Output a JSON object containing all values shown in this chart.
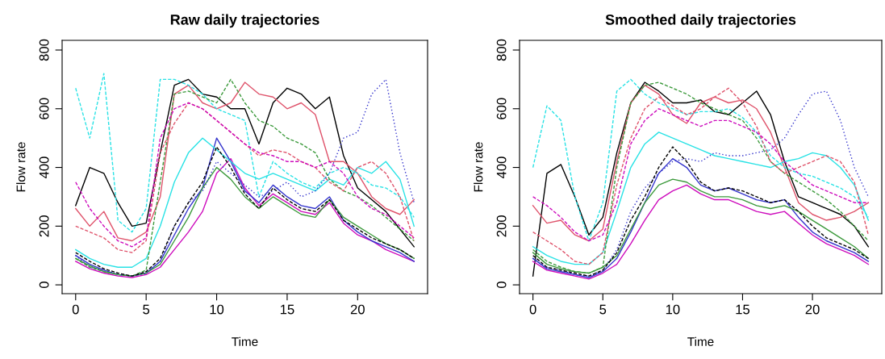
{
  "chart_data": [
    {
      "type": "line",
      "title": "Raw daily trajectories",
      "xlabel": "Time",
      "ylabel": "Flow rate",
      "xlim": [
        -0.96,
        24.96
      ],
      "ylim": [
        -30,
        833
      ],
      "xticks": [
        0,
        5,
        10,
        15,
        20
      ],
      "yticks": [
        0,
        200,
        400,
        600,
        800
      ],
      "grid": false,
      "x": [
        0,
        1,
        2,
        3,
        4,
        5,
        6,
        7,
        8,
        9,
        10,
        11,
        12,
        13,
        14,
        15,
        16,
        17,
        18,
        19,
        20,
        21,
        22,
        23,
        24
      ],
      "series": [
        {
          "color": "#28e2e5",
          "line_style": "dashed",
          "values": [
            670,
            500,
            720,
            220,
            180,
            260,
            700,
            700,
            680,
            650,
            600,
            580,
            560,
            300,
            420,
            380,
            350,
            330,
            380,
            400,
            380,
            340,
            330,
            300,
            230
          ]
        },
        {
          "color": "#000000",
          "line_style": "solid",
          "values": [
            270,
            400,
            380,
            280,
            200,
            210,
            450,
            680,
            700,
            650,
            640,
            600,
            600,
            480,
            620,
            670,
            650,
            600,
            640,
            440,
            330,
            290,
            250,
            190,
            130
          ]
        },
        {
          "color": "#df536b",
          "line_style": "solid",
          "values": [
            260,
            200,
            250,
            160,
            150,
            180,
            300,
            650,
            680,
            620,
            600,
            620,
            690,
            650,
            640,
            600,
            620,
            580,
            420,
            420,
            380,
            300,
            260,
            240,
            290
          ]
        },
        {
          "color": "#3333cc",
          "line_style": "dotted",
          "values": [
            100,
            60,
            50,
            35,
            30,
            40,
            80,
            200,
            280,
            320,
            420,
            380,
            340,
            300,
            320,
            350,
            300,
            320,
            380,
            500,
            520,
            650,
            700,
            450,
            280
          ]
        },
        {
          "color": "#3c9a3c",
          "line_style": "dashed",
          "values": [
            90,
            60,
            45,
            35,
            30,
            50,
            350,
            650,
            660,
            640,
            620,
            700,
            620,
            560,
            540,
            500,
            480,
            450,
            360,
            320,
            300,
            270,
            230,
            190,
            150
          ]
        },
        {
          "color": "#cd0bbc",
          "line_style": "solid",
          "values": [
            80,
            55,
            40,
            30,
            25,
            35,
            60,
            120,
            180,
            250,
            380,
            430,
            330,
            270,
            310,
            280,
            250,
            240,
            280,
            210,
            170,
            150,
            120,
            100,
            80
          ]
        },
        {
          "color": "#3333cc",
          "line_style": "solid",
          "values": [
            100,
            70,
            50,
            35,
            30,
            40,
            80,
            170,
            260,
            330,
            500,
            420,
            320,
            280,
            340,
            300,
            270,
            260,
            300,
            220,
            180,
            150,
            130,
            110,
            80
          ]
        },
        {
          "color": "#000000",
          "line_style": "dashed",
          "values": [
            110,
            80,
            55,
            40,
            30,
            45,
            90,
            200,
            280,
            350,
            470,
            400,
            310,
            260,
            330,
            290,
            260,
            250,
            290,
            220,
            190,
            160,
            140,
            120,
            90
          ]
        },
        {
          "color": "#df536b",
          "line_style": "dashed",
          "values": [
            200,
            180,
            160,
            120,
            110,
            150,
            450,
            550,
            620,
            600,
            560,
            520,
            480,
            440,
            460,
            450,
            420,
            400,
            350,
            320,
            400,
            420,
            380,
            300,
            150
          ]
        },
        {
          "color": "#28e2e5",
          "line_style": "solid",
          "values": [
            120,
            90,
            70,
            60,
            60,
            90,
            200,
            350,
            450,
            500,
            460,
            420,
            380,
            360,
            380,
            360,
            340,
            320,
            360,
            340,
            400,
            380,
            420,
            360,
            200
          ]
        },
        {
          "color": "#3c9a3c",
          "line_style": "solid",
          "values": [
            90,
            65,
            45,
            35,
            30,
            40,
            70,
            150,
            230,
            330,
            400,
            360,
            300,
            260,
            300,
            270,
            240,
            230,
            290,
            230,
            200,
            170,
            140,
            120,
            90
          ]
        },
        {
          "color": "#cd0bbc",
          "line_style": "dashed",
          "values": [
            350,
            260,
            200,
            150,
            130,
            160,
            500,
            600,
            620,
            600,
            560,
            520,
            480,
            450,
            440,
            420,
            420,
            400,
            420,
            380,
            300,
            260,
            240,
            200,
            160
          ]
        }
      ]
    },
    {
      "type": "line",
      "title": "Smoothed daily trajectories",
      "xlabel": "Time",
      "ylabel": "Flow rate",
      "xlim": [
        -0.96,
        24.96
      ],
      "ylim": [
        -30,
        833
      ],
      "xticks": [
        0,
        5,
        10,
        15,
        20
      ],
      "yticks": [
        0,
        200,
        400,
        600,
        800
      ],
      "grid": false,
      "x": [
        0,
        1,
        2,
        3,
        4,
        5,
        6,
        7,
        8,
        9,
        10,
        11,
        12,
        13,
        14,
        15,
        16,
        17,
        18,
        19,
        20,
        21,
        22,
        23,
        24
      ],
      "series": [
        {
          "color": "#28e2e5",
          "line_style": "dashed",
          "values": [
            400,
            610,
            560,
            300,
            150,
            280,
            660,
            700,
            650,
            620,
            600,
            580,
            590,
            590,
            600,
            570,
            520,
            440,
            400,
            380,
            370,
            350,
            330,
            300,
            230
          ]
        },
        {
          "color": "#000000",
          "line_style": "solid",
          "values": [
            30,
            380,
            410,
            300,
            170,
            230,
            450,
            620,
            690,
            660,
            620,
            620,
            630,
            590,
            580,
            620,
            660,
            580,
            420,
            300,
            280,
            260,
            240,
            200,
            130
          ]
        },
        {
          "color": "#df536b",
          "line_style": "solid",
          "values": [
            270,
            210,
            220,
            170,
            150,
            190,
            420,
            620,
            680,
            650,
            580,
            550,
            620,
            640,
            620,
            630,
            600,
            520,
            400,
            280,
            240,
            220,
            230,
            250,
            280
          ]
        },
        {
          "color": "#3333cc",
          "line_style": "dotted",
          "values": [
            90,
            60,
            50,
            35,
            30,
            50,
            120,
            250,
            330,
            380,
            420,
            430,
            420,
            450,
            440,
            440,
            450,
            460,
            500,
            580,
            650,
            660,
            560,
            400,
            300
          ]
        },
        {
          "color": "#3c9a3c",
          "line_style": "dashed",
          "values": [
            120,
            80,
            60,
            45,
            40,
            60,
            400,
            620,
            680,
            690,
            670,
            650,
            620,
            600,
            580,
            560,
            500,
            420,
            380,
            350,
            320,
            290,
            250,
            200,
            150
          ]
        },
        {
          "color": "#cd0bbc",
          "line_style": "solid",
          "values": [
            80,
            50,
            40,
            30,
            20,
            40,
            70,
            140,
            220,
            290,
            320,
            340,
            310,
            290,
            290,
            270,
            250,
            240,
            250,
            210,
            170,
            140,
            120,
            100,
            70
          ]
        },
        {
          "color": "#3333cc",
          "line_style": "solid",
          "values": [
            90,
            55,
            45,
            35,
            25,
            45,
            90,
            180,
            280,
            380,
            430,
            400,
            340,
            320,
            330,
            310,
            290,
            280,
            290,
            230,
            180,
            150,
            130,
            110,
            80
          ]
        },
        {
          "color": "#000000",
          "line_style": "dashed",
          "values": [
            100,
            60,
            50,
            40,
            30,
            50,
            110,
            220,
            300,
            400,
            470,
            420,
            350,
            320,
            330,
            320,
            300,
            280,
            290,
            250,
            200,
            160,
            140,
            120,
            90
          ]
        },
        {
          "color": "#df536b",
          "line_style": "dashed",
          "values": [
            180,
            150,
            120,
            80,
            70,
            110,
            340,
            500,
            600,
            640,
            610,
            580,
            600,
            640,
            670,
            620,
            540,
            420,
            380,
            400,
            420,
            440,
            420,
            350,
            170
          ]
        },
        {
          "color": "#28e2e5",
          "line_style": "solid",
          "values": [
            130,
            100,
            80,
            70,
            70,
            110,
            250,
            400,
            480,
            520,
            500,
            480,
            460,
            440,
            430,
            420,
            410,
            400,
            420,
            430,
            450,
            440,
            400,
            340,
            220
          ]
        },
        {
          "color": "#3c9a3c",
          "line_style": "solid",
          "values": [
            110,
            70,
            55,
            45,
            40,
            60,
            100,
            190,
            280,
            340,
            360,
            350,
            320,
            300,
            300,
            290,
            270,
            260,
            270,
            250,
            220,
            190,
            160,
            130,
            90
          ]
        },
        {
          "color": "#cd0bbc",
          "line_style": "dashed",
          "values": [
            300,
            270,
            230,
            180,
            150,
            170,
            280,
            480,
            560,
            600,
            580,
            560,
            540,
            560,
            560,
            540,
            520,
            480,
            420,
            380,
            340,
            320,
            300,
            280,
            280
          ]
        }
      ]
    }
  ]
}
